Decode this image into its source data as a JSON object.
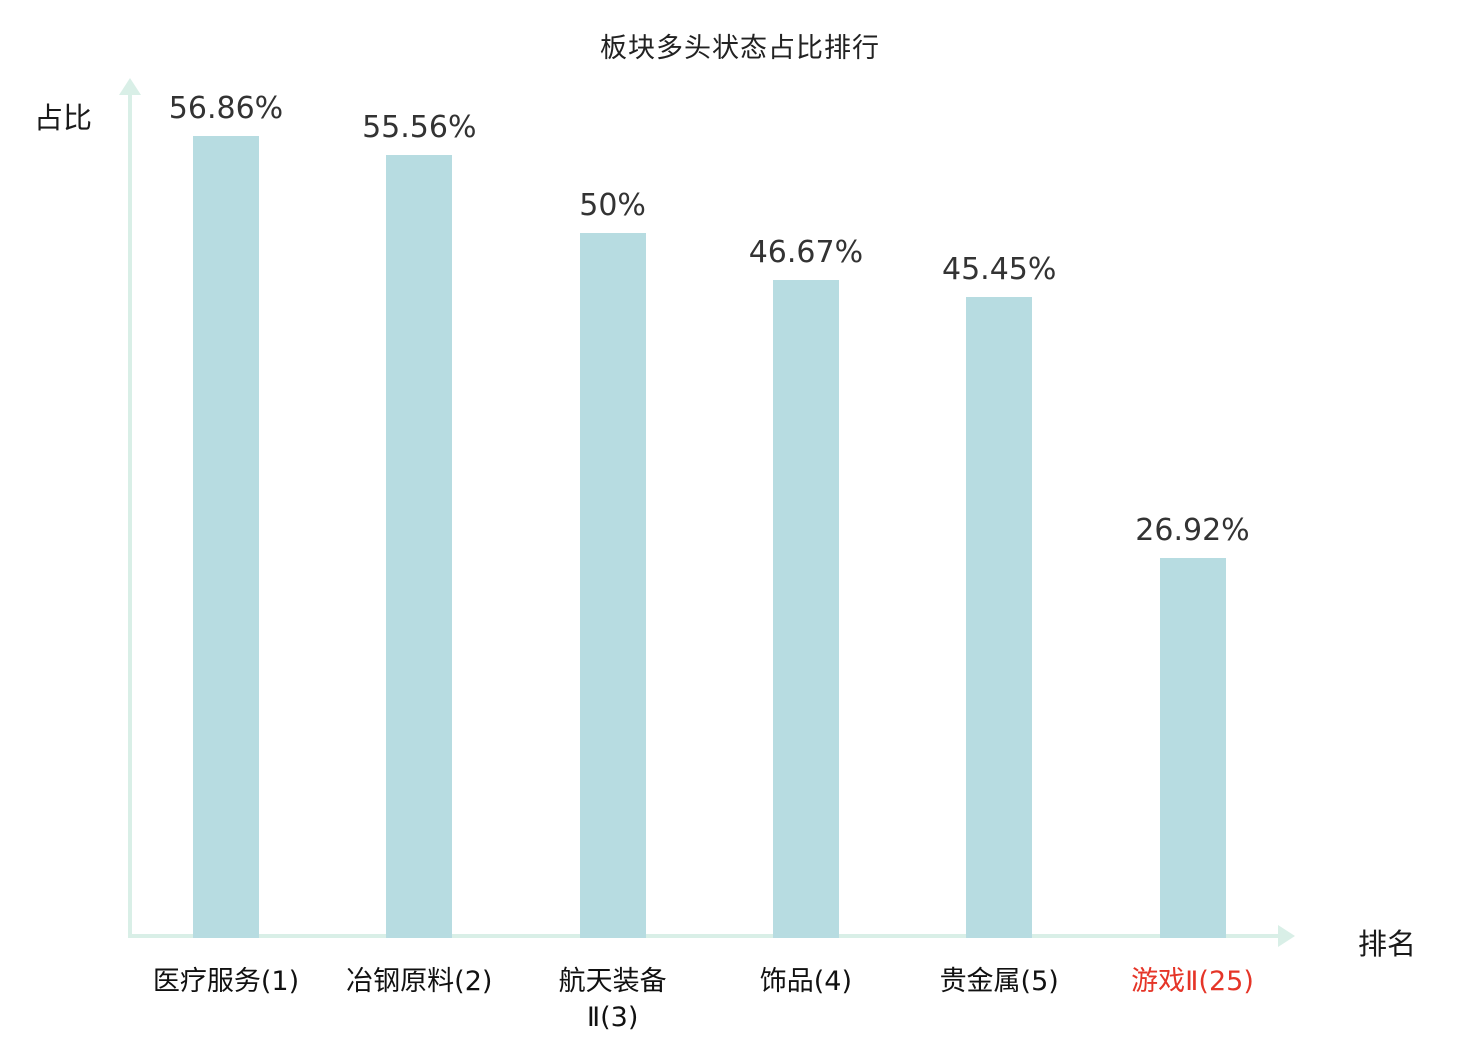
{
  "title": "板块多头状态占比排行",
  "colors": {
    "bar": "#b7dce1",
    "axis": "#d9efe7",
    "value_label": "#333333",
    "category_label": "#111111",
    "highlight_label": "#e53528"
  },
  "chart_data": {
    "type": "bar",
    "title": "板块多头状态占比排行",
    "xlabel": "排名",
    "ylabel": "占比",
    "ylim": [
      0,
      60
    ],
    "grid": false,
    "legend": "none",
    "categories": [
      "医疗服务(1)",
      "冶钢原料(2)",
      "航天装备\nⅡ(3)",
      "饰品(4)",
      "贵金属(5)",
      "游戏Ⅱ(25)"
    ],
    "values": [
      56.86,
      55.56,
      50,
      46.67,
      45.45,
      26.92
    ],
    "value_labels": [
      "56.86%",
      "55.56%",
      "50%",
      "46.67%",
      "45.45%",
      "26.92%"
    ],
    "highlight_index": 5
  }
}
